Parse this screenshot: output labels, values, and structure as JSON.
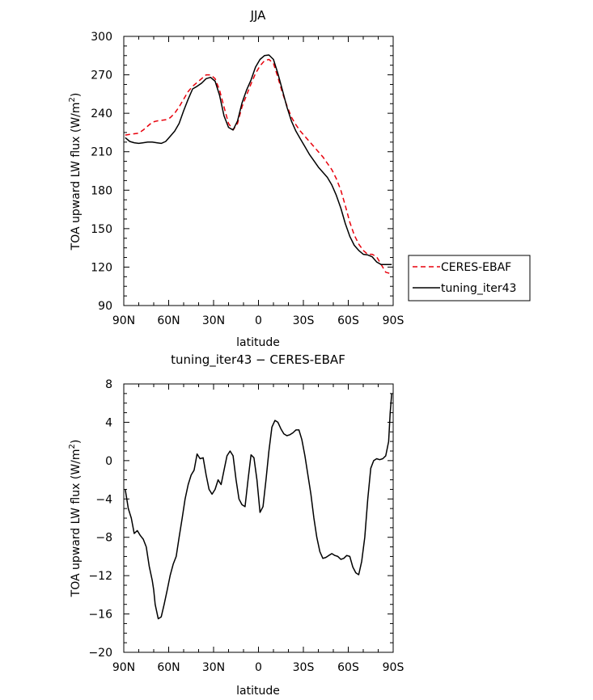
{
  "chart_data": [
    {
      "type": "line",
      "title": "JJA",
      "xlabel": "latitude",
      "ylabel": "TOA upward LW flux (W/m",
      "ylabel_sup": "2",
      "ylabel_end": ")",
      "xlim": [
        90,
        -90
      ],
      "ylim": [
        90,
        300
      ],
      "xticks": [
        90,
        60,
        30,
        0,
        -30,
        -60,
        -90
      ],
      "xtick_labels": [
        "90N",
        "60N",
        "30N",
        "0",
        "30S",
        "60S",
        "90S"
      ],
      "yticks": [
        90,
        120,
        150,
        180,
        210,
        240,
        270,
        300
      ],
      "ytick_labels": [
        "90",
        "120",
        "150",
        "180",
        "210",
        "240",
        "270",
        "300"
      ],
      "legend_position": "right",
      "series": [
        {
          "name": "CERES-EBAF",
          "color": "#e8000b",
          "dash": true,
          "x": [
            89,
            86,
            83,
            80,
            77,
            74,
            71,
            68,
            65,
            62,
            59,
            56,
            53,
            50,
            47,
            44,
            41,
            38,
            35,
            32,
            29,
            26,
            23,
            20,
            17,
            14,
            11,
            8,
            5,
            2,
            -1,
            -4,
            -7,
            -10,
            -13,
            -16,
            -19,
            -22,
            -25,
            -28,
            -31,
            -34,
            -37,
            -40,
            -43,
            -46,
            -49,
            -52,
            -55,
            -58,
            -61,
            -64,
            -67,
            -70,
            -73,
            -76,
            -79,
            -82,
            -85,
            -88,
            -89
          ],
          "y": [
            223,
            223.5,
            224,
            224.5,
            227,
            230,
            233,
            234,
            234.5,
            235,
            236.5,
            240,
            245,
            251,
            257,
            261,
            264,
            267,
            270,
            270,
            267,
            258,
            245,
            232,
            227,
            232,
            245,
            254,
            263,
            271,
            277,
            281,
            282,
            279,
            268,
            256,
            246,
            237,
            231,
            226,
            222,
            218,
            214,
            210,
            206,
            201,
            196,
            189,
            180,
            168,
            155,
            145,
            138,
            133,
            130,
            130,
            128,
            122,
            116,
            115,
            114
          ]
        },
        {
          "name": "tuning_iter43",
          "color": "#000000",
          "dash": false,
          "x": [
            89,
            86,
            83,
            80,
            77,
            74,
            71,
            68,
            65,
            62,
            59,
            56,
            53,
            50,
            47,
            44,
            41,
            38,
            35,
            32,
            29,
            26,
            23,
            20,
            17,
            14,
            11,
            8,
            5,
            2,
            -1,
            -4,
            -7,
            -10,
            -13,
            -16,
            -19,
            -22,
            -25,
            -28,
            -31,
            -34,
            -37,
            -40,
            -43,
            -46,
            -49,
            -52,
            -55,
            -58,
            -61,
            -64,
            -67,
            -70,
            -73,
            -76,
            -79,
            -82,
            -85,
            -88,
            -89
          ],
          "y": [
            221,
            218,
            217,
            216.5,
            217,
            217.5,
            217.5,
            217,
            216.5,
            218,
            222,
            226,
            232,
            242,
            251,
            259,
            261,
            263.5,
            267,
            268,
            265,
            254,
            238,
            229,
            227,
            234,
            248,
            258,
            266,
            276,
            282,
            285,
            285.5,
            282,
            271,
            258,
            245,
            234,
            226,
            220,
            214,
            208,
            203,
            198,
            194,
            190,
            184,
            176,
            166,
            154,
            144,
            137,
            133,
            130,
            129.5,
            128,
            124,
            122,
            122,
            122,
            122
          ]
        }
      ]
    },
    {
      "type": "line",
      "title": "tuning_iter43 − CERES-EBAF",
      "xlabel": "latitude",
      "ylabel": "TOA upward LW flux (W/m",
      "ylabel_sup": "2",
      "ylabel_end": ")",
      "xlim": [
        90,
        -90
      ],
      "ylim": [
        -20,
        8
      ],
      "xticks": [
        90,
        60,
        30,
        0,
        -30,
        -60,
        -90
      ],
      "xtick_labels": [
        "90N",
        "60N",
        "30N",
        "0",
        "30S",
        "60S",
        "90S"
      ],
      "yticks": [
        -20,
        -16,
        -12,
        -8,
        -4,
        0,
        4,
        8
      ],
      "ytick_labels": [
        "−20",
        "−16",
        "−12",
        "−8",
        "−4",
        "0",
        "4",
        "8"
      ],
      "series": [
        {
          "color": "#000000",
          "dash": false,
          "x": [
            89,
            87,
            85,
            83,
            81,
            79,
            77,
            75,
            73,
            71,
            70,
            69,
            67,
            65,
            63,
            61,
            59,
            57,
            55,
            53,
            51,
            49,
            47,
            45,
            43,
            41,
            39,
            37,
            35,
            33,
            31,
            29,
            27,
            25,
            23,
            21,
            19,
            17,
            15,
            13,
            11,
            9,
            7,
            5,
            3,
            1,
            -1,
            -3,
            -5,
            -7,
            -9,
            -11,
            -13,
            -15,
            -17,
            -19,
            -21,
            -23,
            -25,
            -27,
            -29,
            -31,
            -33,
            -35,
            -37,
            -39,
            -41,
            -43,
            -45,
            -47,
            -49,
            -51,
            -53,
            -55,
            -57,
            -59,
            -61,
            -63,
            -65,
            -67,
            -69,
            -71,
            -73,
            -75,
            -77,
            -79,
            -81,
            -83,
            -85,
            -87,
            -88,
            -89
          ],
          "y": [
            -3,
            -5,
            -6,
            -7.6,
            -7.3,
            -7.8,
            -8.2,
            -9,
            -11,
            -12.5,
            -13.5,
            -15,
            -16.5,
            -16.3,
            -15,
            -13.5,
            -12,
            -10.8,
            -10,
            -8,
            -6,
            -4,
            -2.5,
            -1.5,
            -1,
            0.7,
            0.2,
            0.3,
            -1.5,
            -3,
            -3.5,
            -3,
            -2,
            -2.5,
            -1,
            0.5,
            1,
            0.5,
            -2,
            -4,
            -4.6,
            -4.8,
            -2,
            0.6,
            0.3,
            -2,
            -5.4,
            -4.8,
            -2,
            1,
            3.5,
            4.2,
            4,
            3.3,
            2.8,
            2.6,
            2.7,
            2.9,
            3.2,
            3.2,
            2.2,
            0.5,
            -1.5,
            -3.5,
            -6,
            -8,
            -9.5,
            -10.2,
            -10.1,
            -9.9,
            -9.7,
            -9.9,
            -10,
            -10.3,
            -10.2,
            -9.9,
            -10,
            -11.1,
            -11.7,
            -11.9,
            -10.5,
            -8,
            -4,
            -0.8,
            0,
            0.2,
            0.1,
            0.2,
            0.5,
            2,
            5,
            7
          ]
        }
      ]
    }
  ]
}
